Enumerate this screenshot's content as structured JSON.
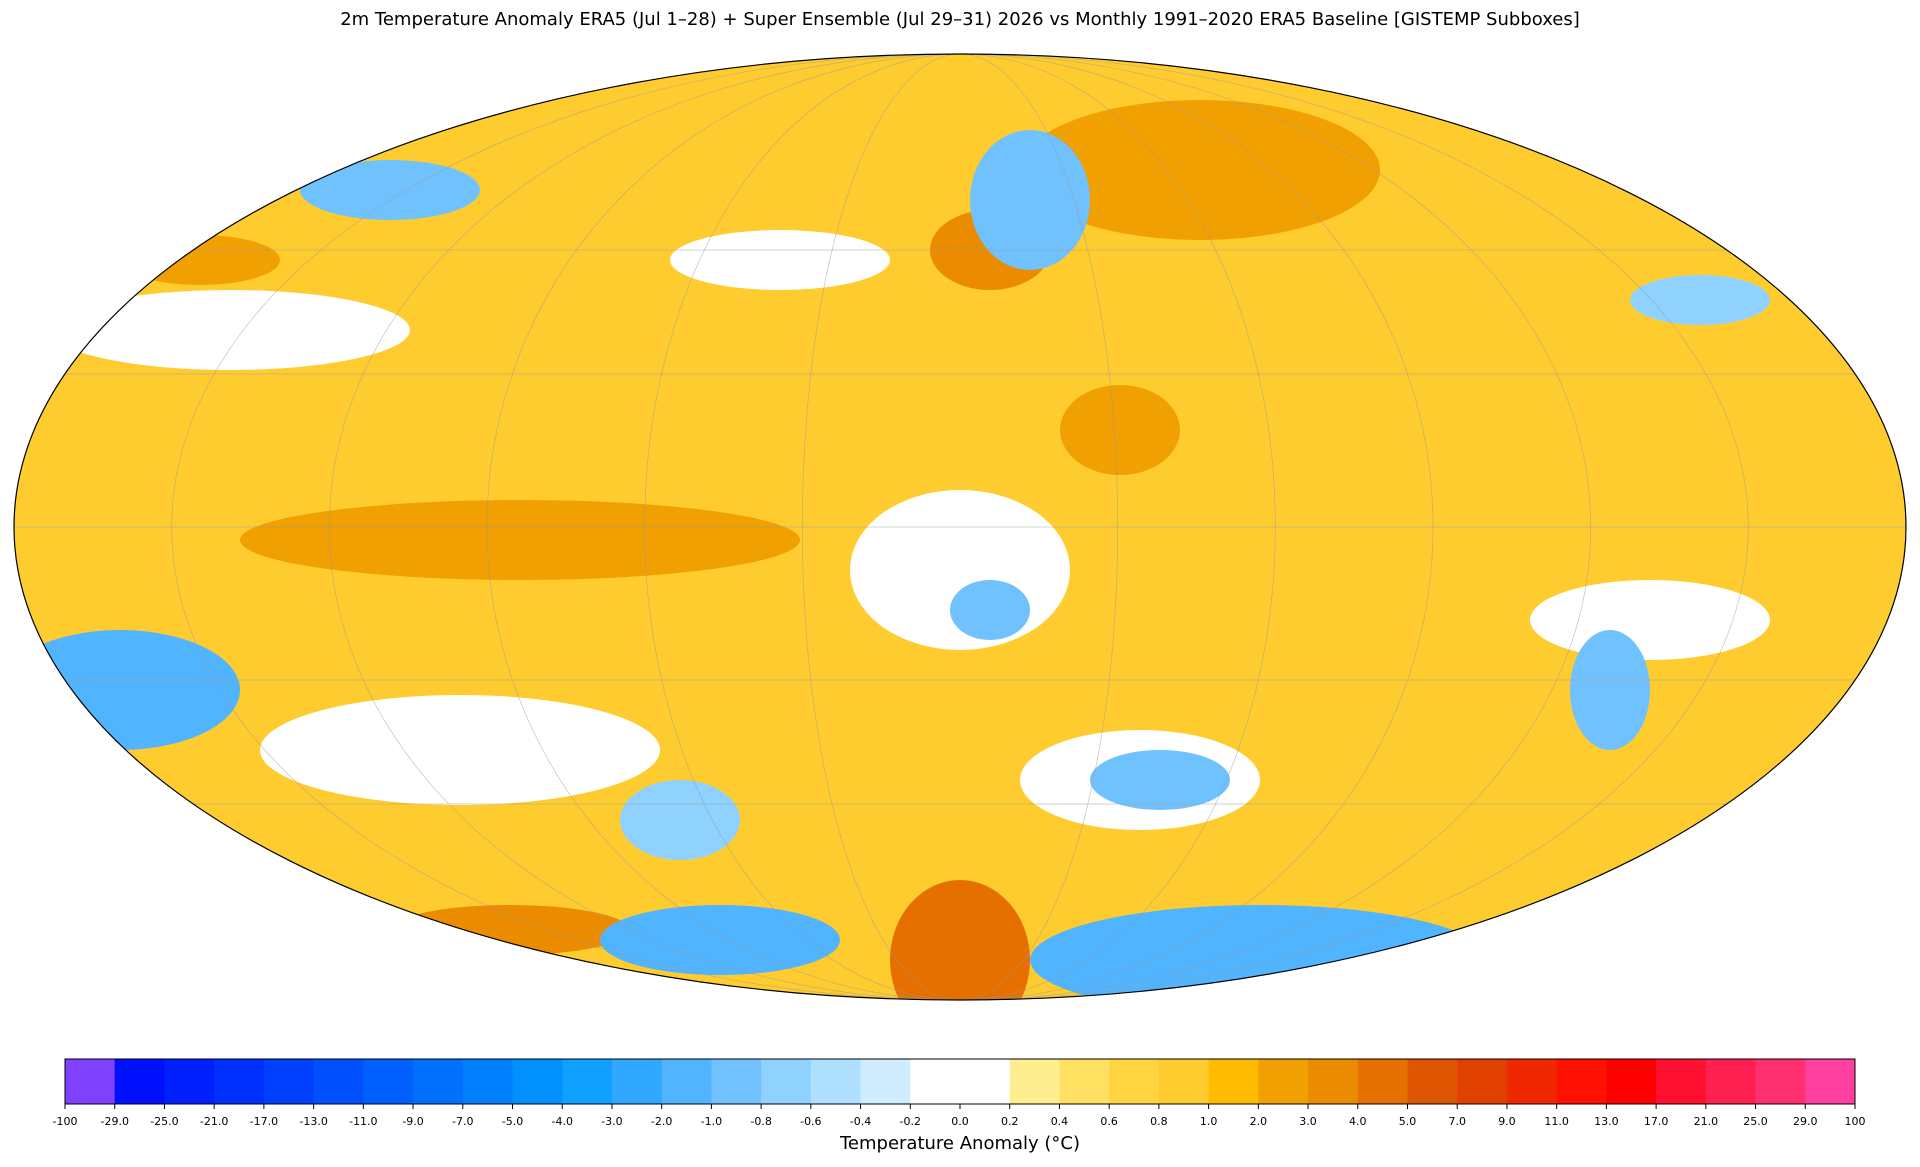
{
  "chart_data": {
    "type": "map",
    "title": "2m Temperature Anomaly  ERA5 (Jul 1–28) + Super Ensemble (Jul 29–31) 2026  vs Monthly 1991–2020 ERA5 Baseline  [GISTEMP Subboxes]",
    "colorbar": {
      "label": "Temperature Anomaly (°C)",
      "ticks": [
        -100,
        {
          "value": -29,
          "label": "-29.0"
        },
        {
          "value": -25,
          "label": "-25.0"
        },
        {
          "value": -21,
          "label": "-21.0"
        },
        {
          "value": -17,
          "label": "-17.0"
        },
        {
          "value": -13,
          "label": "-13.0"
        },
        {
          "value": -11,
          "label": "-11.0"
        },
        {
          "value": -9,
          "label": "-9.0"
        },
        {
          "value": -7,
          "label": "-7.0"
        },
        {
          "value": -5,
          "label": "-5.0"
        },
        {
          "value": -4,
          "label": "-4.0"
        },
        {
          "value": -3,
          "label": "-3.0"
        },
        {
          "value": -2,
          "label": "-2.0"
        },
        {
          "value": -1,
          "label": "-1.0"
        },
        -0.8,
        -0.6,
        -0.4,
        -0.2,
        {
          "value": 0,
          "label": "0.0"
        },
        0.2,
        0.4,
        0.6,
        0.8,
        {
          "value": 1,
          "label": "1.0"
        },
        {
          "value": 2,
          "label": "2.0"
        },
        {
          "value": 3,
          "label": "3.0"
        },
        {
          "value": 4,
          "label": "4.0"
        },
        {
          "value": 5,
          "label": "5.0"
        },
        {
          "value": 7,
          "label": "7.0"
        },
        {
          "value": 9,
          "label": "9.0"
        },
        {
          "value": 11,
          "label": "11.0"
        },
        {
          "value": 13,
          "label": "13.0"
        },
        {
          "value": 17,
          "label": "17.0"
        },
        {
          "value": 21,
          "label": "21.0"
        },
        {
          "value": 25,
          "label": "25.0"
        },
        {
          "value": 29,
          "label": "29.0"
        },
        100
      ],
      "colors": [
        "#8040ff",
        "#0010ff",
        "#0020ff",
        "#0030ff",
        "#0040ff",
        "#0050ff",
        "#0060ff",
        "#0070ff",
        "#0080ff",
        "#0090ff",
        "#10a0ff",
        "#30a8ff",
        "#50b4ff",
        "#70c2ff",
        "#90d2ff",
        "#b0e0ff",
        "#d0ecff",
        "#ffffff",
        "#ffffff",
        "#ffee90",
        "#ffe060",
        "#ffd440",
        "#ffcc30",
        "#ffbb00",
        "#f0a000",
        "#eb8c00",
        "#e57000",
        "#dd5500",
        "#e04000",
        "#f02800",
        "#ff1000",
        "#ff0000",
        "#ff1030",
        "#ff2050",
        "#ff3070",
        "#ff40a0"
      ]
    }
  }
}
